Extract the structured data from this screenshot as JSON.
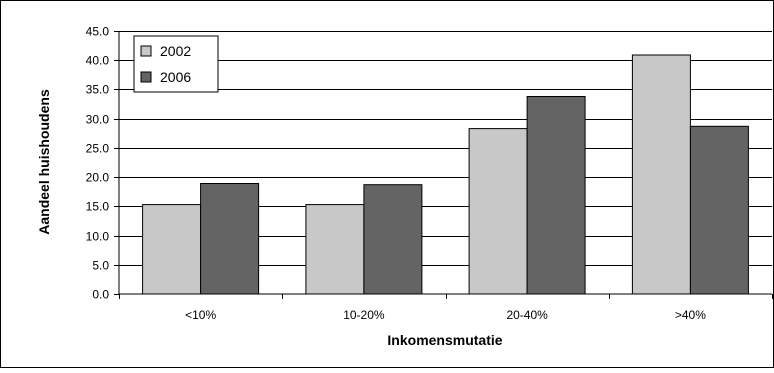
{
  "chart_data": {
    "type": "bar",
    "title": "",
    "xlabel": "Inkomensmutatie",
    "ylabel": "Aandeel huishoudens",
    "categories": [
      "<10%",
      "10-20%",
      "20-40%",
      ">40%"
    ],
    "series": [
      {
        "name": "2002",
        "values": [
          15.3,
          15.3,
          28.3,
          40.9
        ],
        "color": "#c8c8c8"
      },
      {
        "name": "2006",
        "values": [
          18.9,
          18.7,
          33.8,
          28.7
        ],
        "color": "#646464"
      }
    ],
    "ylim": [
      0,
      45
    ],
    "yticks": [
      "0.0",
      "5.0",
      "10.0",
      "15.0",
      "20.0",
      "25.0",
      "30.0",
      "35.0",
      "40.0",
      "45.0"
    ],
    "grid": true,
    "legend_position": "top-left"
  }
}
